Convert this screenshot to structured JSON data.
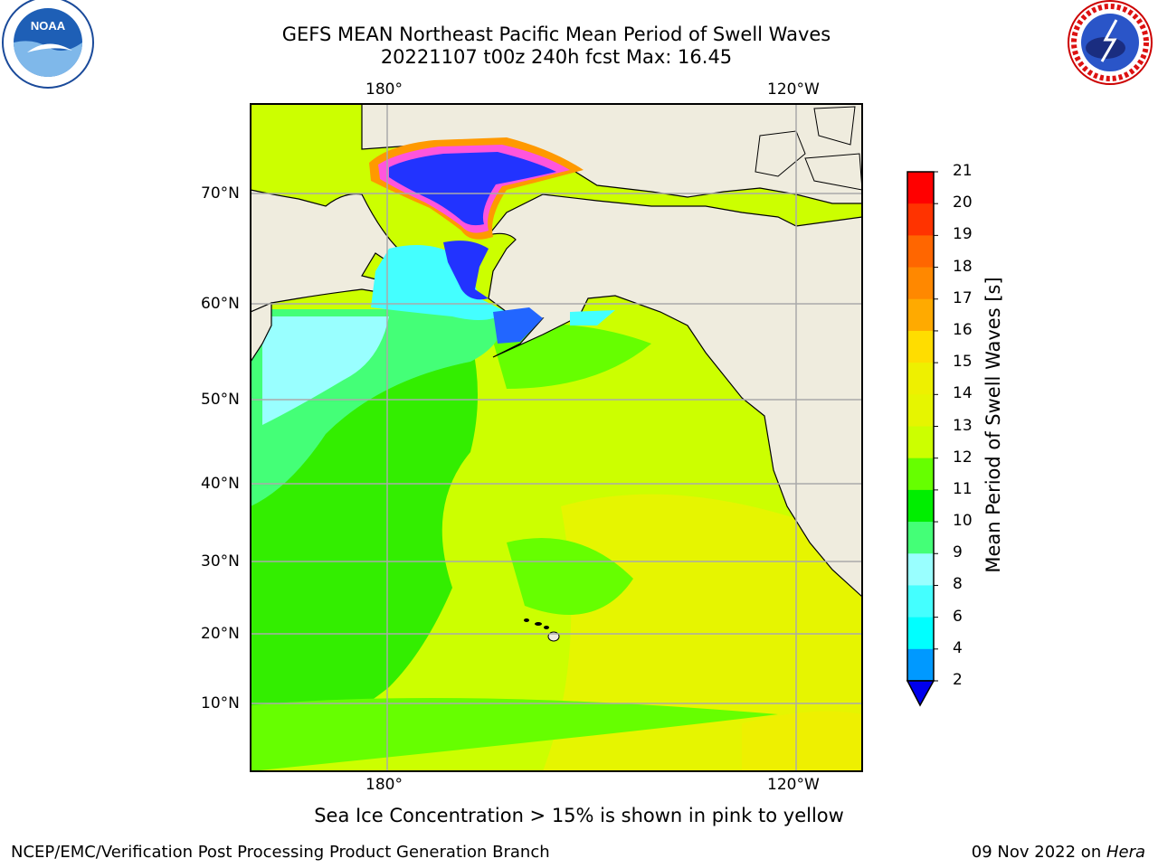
{
  "title": {
    "line1": "GEFS MEAN Northeast Pacific Mean Period of Swell Waves",
    "line2": "20221107 t00z 240h fcst   Max: 16.45"
  },
  "axes": {
    "lon_labels_top": [
      "180°",
      "120°W"
    ],
    "lon_labels_bottom": [
      "180°",
      "120°W"
    ],
    "lat_labels": [
      "70°N",
      "60°N",
      "50°N",
      "40°N",
      "30°N",
      "20°N",
      "10°N"
    ]
  },
  "colorbar": {
    "label": "Mean Period of Swell Waves [s]",
    "ticks": [
      "21",
      "20",
      "19",
      "18",
      "17",
      "16",
      "15",
      "14",
      "13",
      "12",
      "11",
      "10",
      "9",
      "8",
      "6",
      "4",
      "2"
    ],
    "colors": [
      "#ff0000",
      "#ff3300",
      "#ff6600",
      "#ff8800",
      "#ffaa00",
      "#ffdd00",
      "#eef000",
      "#e6f500",
      "#ccff00",
      "#66ff00",
      "#00ee00",
      "#44ff77",
      "#99ffff",
      "#44ffff",
      "#00ffff",
      "#0099ff",
      "#0000ff"
    ]
  },
  "note": "Sea Ice Concentration > 15% is shown in pink to yellow",
  "footer": {
    "left": "NCEP/EMC/Verification Post Processing Product Generation Branch",
    "right_date": "09 Nov 2022 on ",
    "right_host": "Hera"
  },
  "logos": {
    "left": "NOAA",
    "right": "NATIONAL WEATHER SERVICE"
  },
  "colors": {
    "land": "#efecde",
    "ocean_main": "#ccff00",
    "ocean_green": "#33ee00",
    "ocean_cyan": "#99ffff",
    "ice_blue": "#2233ff",
    "ice_pink": "#ff55dd",
    "gridline": "#aaaaaa"
  }
}
